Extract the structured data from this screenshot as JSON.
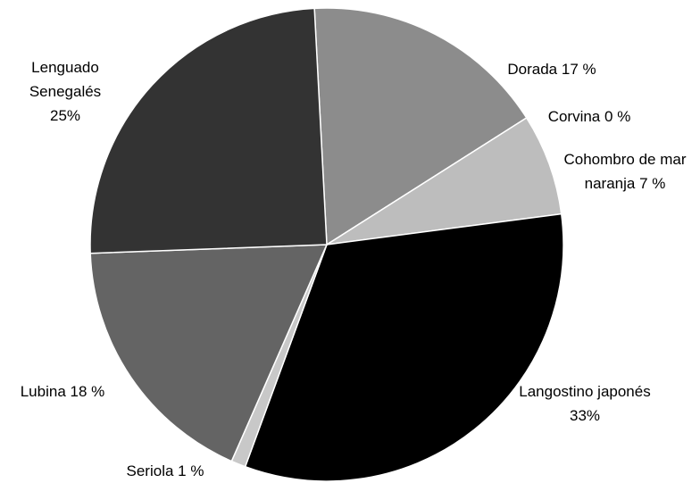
{
  "chart_data": {
    "type": "pie",
    "categories": [
      "Dorada",
      "Corvina",
      "Cohombro de mar naranja",
      "Langostino japonés",
      "Seriola",
      "Lubina",
      "Lenguado Senegalés"
    ],
    "values": [
      17,
      0,
      7,
      33,
      1,
      18,
      25
    ],
    "value_labels": [
      "17 %",
      "0 %",
      "7 %",
      "33%",
      "1 %",
      "18 %",
      "25%"
    ],
    "colors": [
      "#8c8c8c",
      "#b0b0b0",
      "#bdbdbd",
      "#000000",
      "#c8c8c8",
      "#646464",
      "#333333"
    ]
  }
}
